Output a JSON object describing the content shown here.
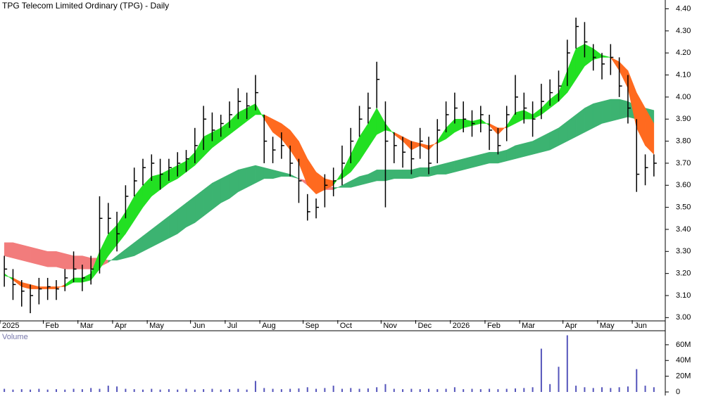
{
  "chart_data": {
    "type": "candlestick",
    "title": "TPG Telecom Limited Ordinary (TPG) - Daily",
    "categories": [
      "2025",
      null,
      null,
      null,
      null,
      "Feb",
      null,
      null,
      null,
      "Mar",
      null,
      null,
      null,
      "Apr",
      null,
      null,
      null,
      "May",
      null,
      null,
      null,
      null,
      "Jun",
      null,
      null,
      null,
      "Jul",
      null,
      null,
      null,
      "Aug",
      null,
      null,
      null,
      null,
      "Sep",
      null,
      null,
      null,
      "Oct",
      null,
      null,
      null,
      null,
      "Nov",
      null,
      null,
      null,
      "Dec",
      null,
      null,
      null,
      "2026",
      null,
      null,
      null,
      "Feb",
      null,
      null,
      null,
      "Mar",
      null,
      null,
      null,
      null,
      "Apr",
      null,
      null,
      null,
      "May",
      null,
      null,
      null,
      "Jun",
      null,
      null
    ],
    "close": [
      3.22,
      3.15,
      3.12,
      3.1,
      3.13,
      3.14,
      3.13,
      3.18,
      3.22,
      3.18,
      3.22,
      3.45,
      3.45,
      3.38,
      3.55,
      3.62,
      3.68,
      3.7,
      3.65,
      3.68,
      3.7,
      3.72,
      3.78,
      3.9,
      3.85,
      3.88,
      3.92,
      3.98,
      3.96,
      4.02,
      3.8,
      3.76,
      3.78,
      3.7,
      3.62,
      3.48,
      3.5,
      3.6,
      3.62,
      3.7,
      3.8,
      3.9,
      3.95,
      4.08,
      3.8,
      3.78,
      3.75,
      3.72,
      3.8,
      3.7,
      3.85,
      3.92,
      3.95,
      3.9,
      3.88,
      3.92,
      3.85,
      3.78,
      3.92,
      4.0,
      3.95,
      3.9,
      3.98,
      4.02,
      4.05,
      4.2,
      4.32,
      4.25,
      4.18,
      4.15,
      4.18,
      4.05,
      3.95,
      3.65,
      3.68,
      3.7
    ],
    "high": [
      3.28,
      3.22,
      3.17,
      3.15,
      3.18,
      3.18,
      3.17,
      3.22,
      3.3,
      3.24,
      3.28,
      3.55,
      3.52,
      3.48,
      3.6,
      3.68,
      3.72,
      3.74,
      3.72,
      3.72,
      3.75,
      3.76,
      3.86,
      3.96,
      3.93,
      3.92,
      3.98,
      4.04,
      4.02,
      4.1,
      3.92,
      3.82,
      3.84,
      3.78,
      3.72,
      3.56,
      3.54,
      3.65,
      3.68,
      3.78,
      3.86,
      3.96,
      4.02,
      4.16,
      3.98,
      3.84,
      3.82,
      3.8,
      3.86,
      3.82,
      3.9,
      3.98,
      4.02,
      3.98,
      3.94,
      3.96,
      3.92,
      3.86,
      3.96,
      4.1,
      4.02,
      3.98,
      4.06,
      4.08,
      4.12,
      4.26,
      4.36,
      4.34,
      4.24,
      4.2,
      4.24,
      4.18,
      4.1,
      3.9,
      3.74,
      3.74
    ],
    "low": [
      3.14,
      3.08,
      3.05,
      3.02,
      3.06,
      3.08,
      3.08,
      3.12,
      3.16,
      3.12,
      3.15,
      3.2,
      3.38,
      3.3,
      3.45,
      3.55,
      3.6,
      3.62,
      3.58,
      3.62,
      3.64,
      3.66,
      3.7,
      3.76,
      3.8,
      3.82,
      3.86,
      3.9,
      3.9,
      3.94,
      3.7,
      3.7,
      3.72,
      3.64,
      3.52,
      3.44,
      3.45,
      3.5,
      3.55,
      3.6,
      3.7,
      3.82,
      3.88,
      3.95,
      3.5,
      3.7,
      3.68,
      3.65,
      3.72,
      3.65,
      3.7,
      3.84,
      3.88,
      3.84,
      3.82,
      3.84,
      3.76,
      3.74,
      3.8,
      3.92,
      3.88,
      3.82,
      3.9,
      3.96,
      3.98,
      4.05,
      4.22,
      4.18,
      4.12,
      4.08,
      4.1,
      4.0,
      3.88,
      3.57,
      3.6,
      3.64
    ],
    "bands": [
      {
        "up_color": "#3cb371",
        "down_color": "#f27c7c",
        "fast": [
          3.28,
          3.27,
          3.26,
          3.25,
          3.24,
          3.23,
          3.23,
          3.22,
          3.22,
          3.22,
          3.22,
          3.23,
          3.25,
          3.28,
          3.31,
          3.34,
          3.37,
          3.4,
          3.43,
          3.46,
          3.49,
          3.52,
          3.55,
          3.58,
          3.61,
          3.63,
          3.65,
          3.67,
          3.68,
          3.69,
          3.68,
          3.67,
          3.66,
          3.65,
          3.63,
          3.6,
          3.58,
          3.58,
          3.58,
          3.6,
          3.62,
          3.64,
          3.65,
          3.67,
          3.67,
          3.67,
          3.67,
          3.67,
          3.68,
          3.68,
          3.69,
          3.7,
          3.71,
          3.72,
          3.73,
          3.74,
          3.75,
          3.75,
          3.76,
          3.78,
          3.79,
          3.8,
          3.82,
          3.84,
          3.86,
          3.89,
          3.92,
          3.95,
          3.97,
          3.98,
          3.99,
          3.99,
          3.98,
          3.96,
          3.95,
          3.94
        ],
        "slow": [
          3.34,
          3.34,
          3.33,
          3.32,
          3.31,
          3.3,
          3.3,
          3.29,
          3.28,
          3.28,
          3.27,
          3.27,
          3.26,
          3.26,
          3.27,
          3.28,
          3.3,
          3.32,
          3.34,
          3.36,
          3.38,
          3.41,
          3.43,
          3.46,
          3.49,
          3.52,
          3.54,
          3.57,
          3.59,
          3.61,
          3.63,
          3.63,
          3.64,
          3.64,
          3.63,
          3.62,
          3.61,
          3.6,
          3.59,
          3.59,
          3.59,
          3.6,
          3.61,
          3.62,
          3.62,
          3.63,
          3.63,
          3.63,
          3.64,
          3.64,
          3.65,
          3.65,
          3.66,
          3.67,
          3.68,
          3.69,
          3.7,
          3.7,
          3.71,
          3.72,
          3.73,
          3.74,
          3.75,
          3.76,
          3.78,
          3.8,
          3.82,
          3.84,
          3.86,
          3.88,
          3.89,
          3.9,
          3.91,
          3.9,
          3.89,
          3.88
        ]
      },
      {
        "up_color": "#22e022",
        "down_color": "#ff6a1f",
        "fast": [
          3.2,
          3.17,
          3.14,
          3.13,
          3.13,
          3.13,
          3.13,
          3.15,
          3.18,
          3.18,
          3.2,
          3.3,
          3.38,
          3.42,
          3.48,
          3.55,
          3.6,
          3.64,
          3.65,
          3.67,
          3.69,
          3.71,
          3.75,
          3.82,
          3.84,
          3.86,
          3.89,
          3.93,
          3.95,
          3.97,
          3.9,
          3.84,
          3.81,
          3.76,
          3.7,
          3.6,
          3.56,
          3.58,
          3.6,
          3.66,
          3.74,
          3.82,
          3.88,
          3.95,
          3.88,
          3.83,
          3.8,
          3.76,
          3.78,
          3.76,
          3.8,
          3.86,
          3.9,
          3.9,
          3.89,
          3.9,
          3.87,
          3.83,
          3.87,
          3.93,
          3.94,
          3.92,
          3.95,
          3.99,
          4.02,
          4.12,
          4.22,
          4.24,
          4.22,
          4.19,
          4.18,
          4.12,
          4.04,
          3.86,
          3.78,
          3.74
        ],
        "slow": [
          3.19,
          3.18,
          3.16,
          3.15,
          3.14,
          3.14,
          3.14,
          3.14,
          3.16,
          3.16,
          3.17,
          3.22,
          3.28,
          3.33,
          3.38,
          3.44,
          3.5,
          3.55,
          3.58,
          3.61,
          3.63,
          3.66,
          3.69,
          3.73,
          3.77,
          3.8,
          3.83,
          3.86,
          3.89,
          3.92,
          3.92,
          3.9,
          3.88,
          3.85,
          3.8,
          3.72,
          3.66,
          3.63,
          3.62,
          3.63,
          3.66,
          3.71,
          3.77,
          3.83,
          3.85,
          3.84,
          3.82,
          3.8,
          3.79,
          3.78,
          3.79,
          3.81,
          3.84,
          3.86,
          3.87,
          3.88,
          3.88,
          3.86,
          3.86,
          3.88,
          3.9,
          3.9,
          3.92,
          3.95,
          3.98,
          4.02,
          4.08,
          4.14,
          4.17,
          4.18,
          4.18,
          4.16,
          4.12,
          4.02,
          3.95,
          3.88
        ]
      }
    ],
    "ylim": [
      2.95,
      4.44
    ],
    "yticks": [
      {
        "value": 3.0,
        "label": "3.00"
      },
      {
        "value": 3.1,
        "label": "3.10"
      },
      {
        "value": 3.2,
        "label": "3.20"
      },
      {
        "value": 3.3,
        "label": "3.30"
      },
      {
        "value": 3.4,
        "label": "3.40"
      },
      {
        "value": 3.5,
        "label": "3.50"
      },
      {
        "value": 3.6,
        "label": "3.60"
      },
      {
        "value": 3.7,
        "label": "3.70"
      },
      {
        "value": 3.8,
        "label": "3.80"
      },
      {
        "value": 3.9,
        "label": "3.90"
      },
      {
        "value": 4.0,
        "label": "4.00"
      },
      {
        "value": 4.1,
        "label": "4.10"
      },
      {
        "value": 4.2,
        "label": "4.20"
      },
      {
        "value": 4.3,
        "label": "4.30"
      },
      {
        "value": 4.4,
        "label": "4.40"
      }
    ],
    "bar_color": "#000000",
    "volume": {
      "label": "Volume",
      "color": "#5555bb",
      "values": [
        4000000,
        3000000,
        3500000,
        3000000,
        4000000,
        3000000,
        3500000,
        3000000,
        4000000,
        3500000,
        5000000,
        4000000,
        8000000,
        7000000,
        4000000,
        3500000,
        3000000,
        4000000,
        3000000,
        3500000,
        3000000,
        4000000,
        3000000,
        3500000,
        4000000,
        3000000,
        3500000,
        4000000,
        3000000,
        14000000,
        5000000,
        4000000,
        3500000,
        4000000,
        4500000,
        6000000,
        4000000,
        5000000,
        8000000,
        4000000,
        5000000,
        4000000,
        4500000,
        6000000,
        10000000,
        4000000,
        3500000,
        4000000,
        3500000,
        4000000,
        3500000,
        4000000,
        6000000,
        3500000,
        4000000,
        3500000,
        4000000,
        3500000,
        4000000,
        4500000,
        5000000,
        6000000,
        55000000,
        10000000,
        32000000,
        72000000,
        8000000,
        6000000,
        5000000,
        6000000,
        5000000,
        6000000,
        7000000,
        29000000,
        8000000,
        6000000
      ],
      "ylim": [
        0,
        76000000
      ],
      "yticks": [
        0,
        {
          "value": 20000000,
          "label": "20M"
        },
        {
          "value": 40000000,
          "label": "40M"
        },
        {
          "value": 60000000,
          "label": "60M"
        }
      ]
    }
  }
}
